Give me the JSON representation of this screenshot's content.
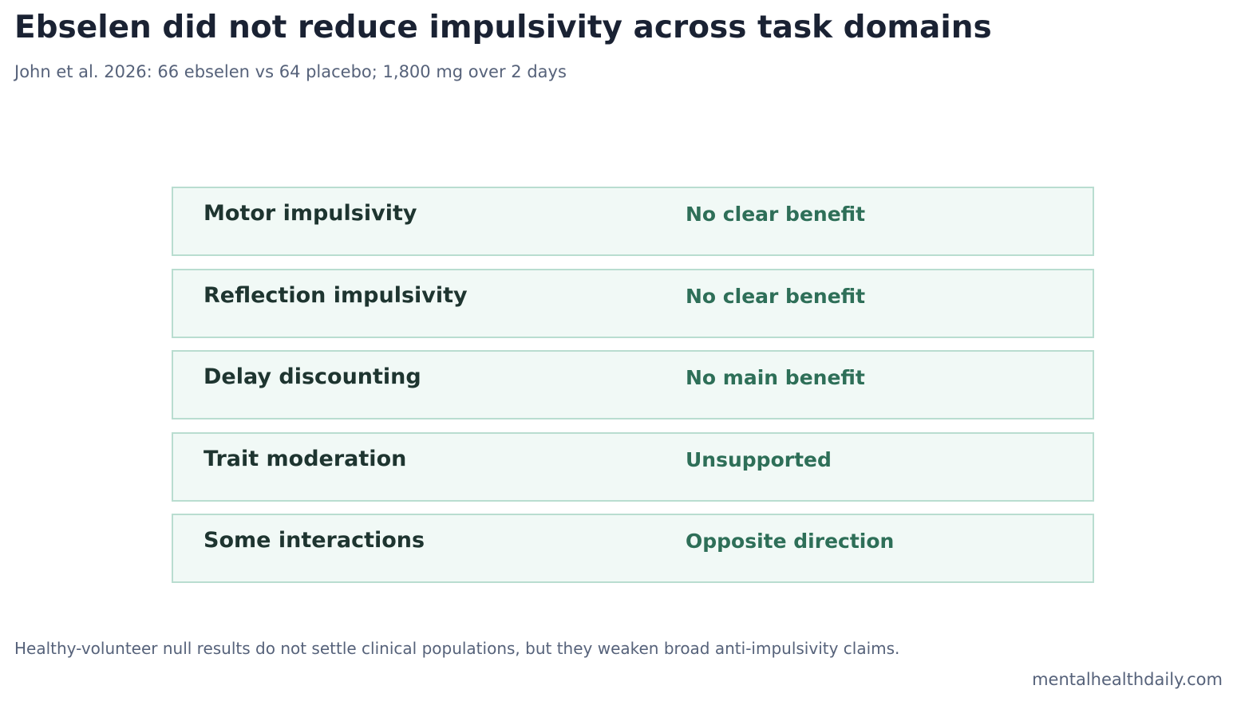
{
  "header": {
    "title": "Ebselen did not reduce impulsivity across task domains",
    "subtitle": "John et al. 2026: 66 ebselen vs 64 placebo; 1,800 mg over 2 days"
  },
  "table": {
    "rows": [
      [
        "Motor impulsivity",
        "No clear benefit"
      ],
      [
        "Reflection impulsivity",
        "No clear benefit"
      ],
      [
        "Delay discounting",
        "No main benefit"
      ],
      [
        "Trait moderation",
        "Unsupported"
      ],
      [
        "Some interactions",
        "Opposite direction"
      ]
    ]
  },
  "footer": {
    "note": "Healthy-volunteer null results do not settle clinical populations, but they weaken broad anti-impulsivity claims.",
    "source": "mentalhealthdaily.com"
  }
}
